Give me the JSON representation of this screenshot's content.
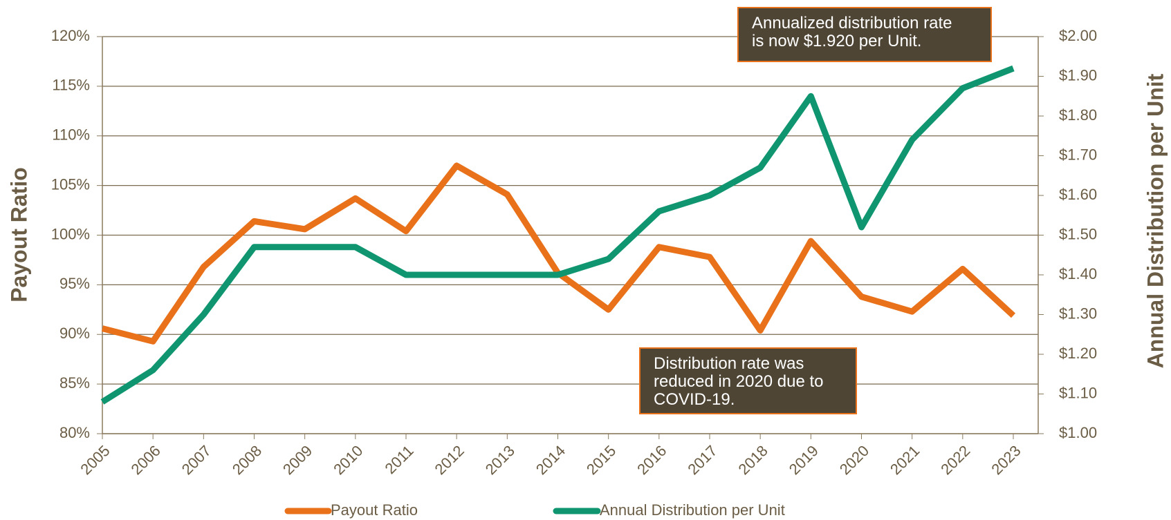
{
  "chart_data": {
    "type": "line",
    "categories": [
      "2005",
      "2006",
      "2007",
      "2008",
      "2009",
      "2010",
      "2011",
      "2012",
      "2013",
      "2014",
      "2015",
      "2016",
      "2017",
      "2018",
      "2019",
      "2020",
      "2021",
      "2022",
      "2023"
    ],
    "series": [
      {
        "name": "Payout Ratio",
        "color": "#e8711a",
        "values": [
          90.6,
          89.3,
          96.8,
          101.4,
          100.6,
          103.7,
          100.4,
          107.0,
          104.1,
          96.2,
          92.5,
          98.8,
          97.8,
          90.4,
          99.4,
          93.8,
          92.3,
          96.6,
          91.9
        ]
      },
      {
        "name": "Annual Distribution per Unit",
        "color": "#0f9670",
        "axis": "y2",
        "values": [
          1.08,
          1.16,
          1.3,
          1.47,
          1.47,
          1.47,
          1.4,
          1.4,
          1.4,
          1.4,
          1.44,
          1.56,
          1.6,
          1.67,
          1.85,
          1.52,
          1.74,
          1.87,
          1.92
        ]
      }
    ],
    "ylabel": "Payout Ratio",
    "y2label": "Annual Distribution per Unit",
    "ylim": [
      80,
      120
    ],
    "yticks": [
      {
        "value": 80,
        "label": "80%"
      },
      {
        "value": 85,
        "label": "85%"
      },
      {
        "value": 90,
        "label": "90%"
      },
      {
        "value": 95,
        "label": "95%"
      },
      {
        "value": 100,
        "label": "100%"
      },
      {
        "value": 105,
        "label": "105%"
      },
      {
        "value": 110,
        "label": "110%"
      },
      {
        "value": 115,
        "label": "115%"
      },
      {
        "value": 120,
        "label": "120%"
      }
    ],
    "y2lim": [
      1.0,
      2.0
    ],
    "y2ticks": [
      {
        "value": 1.0,
        "label": "$1.00"
      },
      {
        "value": 1.1,
        "label": "$1.10"
      },
      {
        "value": 1.2,
        "label": "$1.20"
      },
      {
        "value": 1.3,
        "label": "$1.30"
      },
      {
        "value": 1.4,
        "label": "$1.40"
      },
      {
        "value": 1.5,
        "label": "$1.50"
      },
      {
        "value": 1.6,
        "label": "$1.60"
      },
      {
        "value": 1.7,
        "label": "$1.70"
      },
      {
        "value": 1.8,
        "label": "$1.80"
      },
      {
        "value": 1.9,
        "label": "$1.90"
      },
      {
        "value": 2.0,
        "label": "$2.00"
      }
    ],
    "grid": true,
    "legend": "bottom",
    "annotations": [
      {
        "lines": [
          "Annualized distribution rate",
          "is now $1.920 per Unit."
        ]
      },
      {
        "lines": [
          "Distribution rate was",
          "reduced in 2020 due to",
          "COVID-19."
        ]
      }
    ]
  }
}
